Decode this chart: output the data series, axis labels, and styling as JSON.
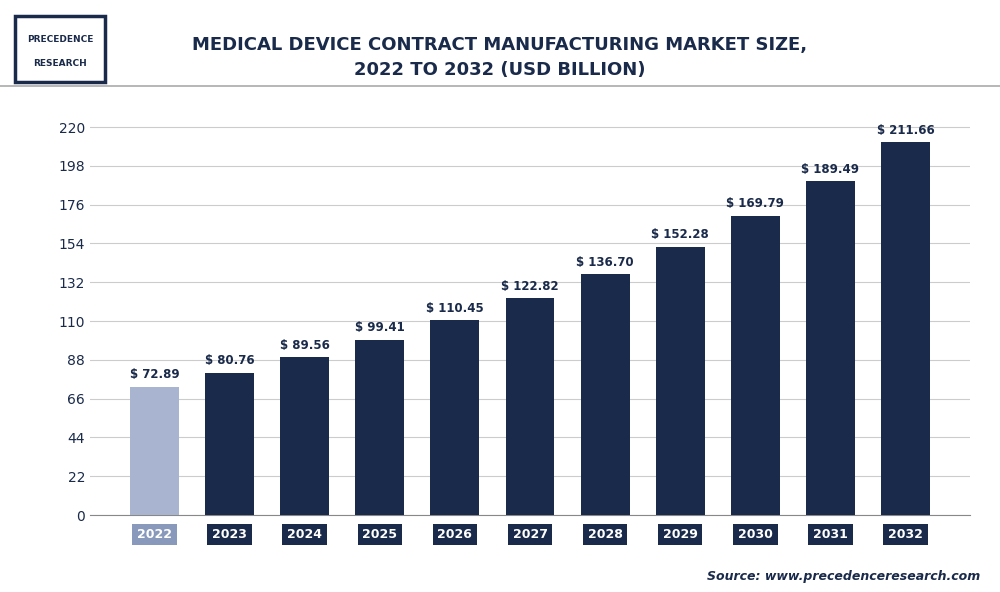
{
  "title": "MEDICAL DEVICE CONTRACT MANUFACTURING MARKET SIZE,\n2022 TO 2032 (USD BILLION)",
  "years": [
    2022,
    2023,
    2024,
    2025,
    2026,
    2027,
    2028,
    2029,
    2030,
    2031,
    2032
  ],
  "values": [
    72.89,
    80.76,
    89.56,
    99.41,
    110.45,
    122.82,
    136.7,
    152.28,
    169.79,
    189.49,
    211.66
  ],
  "bar_colors": [
    "#a8b4d0",
    "#1a2a4a",
    "#1a2a4a",
    "#1a2a4a",
    "#1a2a4a",
    "#1a2a4a",
    "#1a2a4a",
    "#1a2a4a",
    "#1a2a4a",
    "#1a2a4a",
    "#1a2a4a"
  ],
  "xtick_box_colors": [
    "#8899bb",
    "#1a2a4a",
    "#1a2a4a",
    "#1a2a4a",
    "#1a2a4a",
    "#1a2a4a",
    "#1a2a4a",
    "#1a2a4a",
    "#1a2a4a",
    "#1a2a4a",
    "#1a2a4a"
  ],
  "yticks": [
    0,
    22,
    44,
    66,
    88,
    110,
    132,
    154,
    176,
    198,
    220
  ],
  "ylim": [
    0,
    235
  ],
  "bg_color": "#ffffff",
  "plot_bg_color": "#ffffff",
  "grid_color": "#cccccc",
  "source_text": "Source: www.precedenceresearch.com",
  "title_color": "#1a2a4a",
  "label_color": "#1a2a4a",
  "value_label_prefix": "$ "
}
